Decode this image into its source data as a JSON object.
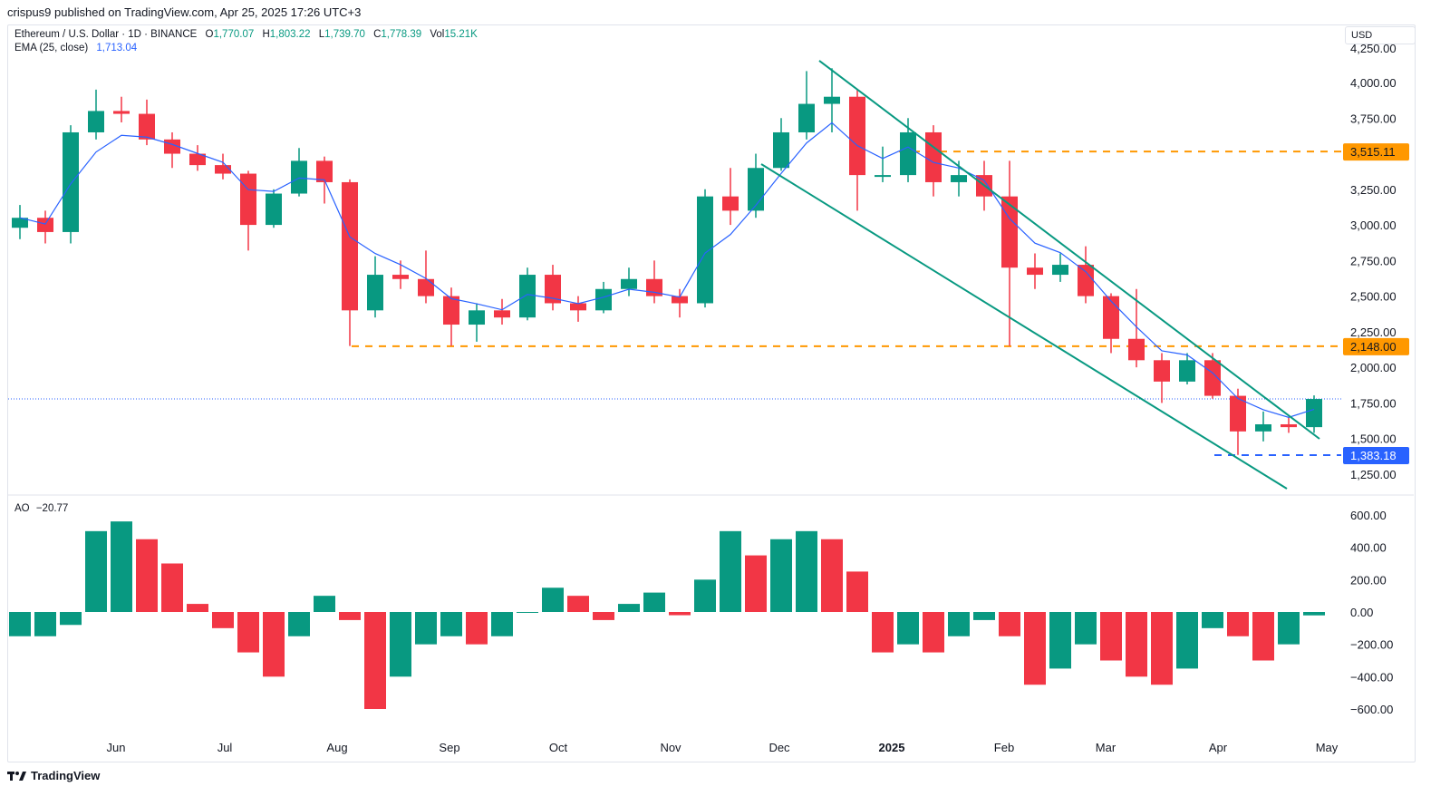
{
  "header": {
    "published": "crispus9 published on TradingView.com, Apr 25, 2025 17:26 UTC+3",
    "symbol": "Ethereum / U.S. Dollar · 1D · BINANCE",
    "o_label": "O",
    "o": "1,770.07",
    "h_label": "H",
    "h": "1,803.22",
    "l_label": "L",
    "l": "1,739.70",
    "c_label": "C",
    "c": "1,778.39",
    "vol_label": "Vol",
    "vol": "15.21K",
    "ema_label": "EMA (25, close)",
    "ema": "1,713.04",
    "currency": "USD"
  },
  "ao_panel": {
    "label": "AO",
    "value": "−20.77"
  },
  "footer": {
    "logo_text": "TradingView"
  },
  "colors": {
    "up": "#089981",
    "down": "#f23645",
    "ema": "#2962ff",
    "channel": "#089981",
    "level": "#ff9800",
    "support": "#2962ff"
  },
  "chart_data": [
    {
      "type": "candlestick",
      "title": "Ethereum / U.S. Dollar · 1D · BINANCE",
      "note": "values approximated from the chart, aggregated weekly",
      "yscale": "linear",
      "ylim": [
        1100,
        4300
      ],
      "yticks": [
        "1,250.00",
        "1,500.00",
        "1,750.00",
        "2,000.00",
        "2,250.00",
        "2,500.00",
        "2,750.00",
        "3,000.00",
        "3,250.00",
        "3,750.00",
        "4,000.00"
      ],
      "ytick_values": [
        1250,
        1500,
        1750,
        2000,
        2250,
        2500,
        2750,
        3000,
        3250,
        3750,
        4000
      ],
      "xticks": [
        {
          "label": "Jun",
          "date": "2024-06-01"
        },
        {
          "label": "Jul",
          "date": "2024-07-01"
        },
        {
          "label": "Aug",
          "date": "2024-08-01"
        },
        {
          "label": "Sep",
          "date": "2024-09-01"
        },
        {
          "label": "Oct",
          "date": "2024-10-01"
        },
        {
          "label": "Nov",
          "date": "2024-11-01"
        },
        {
          "label": "Dec",
          "date": "2024-12-01"
        },
        {
          "label": "2025",
          "date": "2025-01-01"
        },
        {
          "label": "Feb",
          "date": "2025-02-01"
        },
        {
          "label": "Mar",
          "date": "2025-03-01"
        },
        {
          "label": "Apr",
          "date": "2025-04-01"
        },
        {
          "label": "May",
          "date": "2025-05-01"
        }
      ],
      "start_date": "2024-05-02",
      "ohlc": [
        [
          2980,
          3140,
          2900,
          3050
        ],
        [
          3050,
          3100,
          2870,
          2950
        ],
        [
          2950,
          3700,
          2870,
          3650
        ],
        [
          3650,
          3950,
          3600,
          3800
        ],
        [
          3800,
          3900,
          3720,
          3780
        ],
        [
          3780,
          3880,
          3560,
          3600
        ],
        [
          3600,
          3650,
          3400,
          3500
        ],
        [
          3500,
          3560,
          3380,
          3420
        ],
        [
          3420,
          3500,
          3320,
          3360
        ],
        [
          3360,
          3380,
          2820,
          3000
        ],
        [
          3000,
          3250,
          2980,
          3220
        ],
        [
          3220,
          3540,
          3200,
          3450
        ],
        [
          3450,
          3480,
          3150,
          3300
        ],
        [
          3300,
          3320,
          2150,
          2400
        ],
        [
          2400,
          2780,
          2350,
          2650
        ],
        [
          2650,
          2750,
          2550,
          2620
        ],
        [
          2620,
          2820,
          2450,
          2500
        ],
        [
          2500,
          2560,
          2150,
          2300
        ],
        [
          2300,
          2450,
          2180,
          2400
        ],
        [
          2400,
          2480,
          2300,
          2350
        ],
        [
          2350,
          2700,
          2330,
          2650
        ],
        [
          2650,
          2720,
          2400,
          2450
        ],
        [
          2450,
          2500,
          2320,
          2400
        ],
        [
          2400,
          2600,
          2380,
          2550
        ],
        [
          2550,
          2700,
          2500,
          2620
        ],
        [
          2620,
          2750,
          2450,
          2500
        ],
        [
          2500,
          2550,
          2350,
          2450
        ],
        [
          2450,
          3250,
          2420,
          3200
        ],
        [
          3200,
          3400,
          3000,
          3100
        ],
        [
          3100,
          3500,
          3050,
          3400
        ],
        [
          3400,
          3750,
          3380,
          3650
        ],
        [
          3650,
          4080,
          3600,
          3850
        ],
        [
          3850,
          4100,
          3650,
          3900
        ],
        [
          3900,
          3950,
          3100,
          3350
        ],
        [
          3350,
          3550,
          3300,
          3350
        ],
        [
          3350,
          3750,
          3300,
          3650
        ],
        [
          3650,
          3700,
          3200,
          3300
        ],
        [
          3300,
          3450,
          3200,
          3350
        ],
        [
          3350,
          3450,
          3100,
          3200
        ],
        [
          3200,
          3450,
          2150,
          2700
        ],
        [
          2700,
          2800,
          2550,
          2650
        ],
        [
          2650,
          2800,
          2600,
          2720
        ],
        [
          2720,
          2850,
          2450,
          2500
        ],
        [
          2500,
          2520,
          2100,
          2200
        ],
        [
          2200,
          2550,
          2000,
          2050
        ],
        [
          2050,
          2100,
          1750,
          1900
        ],
        [
          1900,
          2100,
          1880,
          2050
        ],
        [
          2050,
          2100,
          1780,
          1800
        ],
        [
          1800,
          1850,
          1385,
          1550
        ],
        [
          1550,
          1690,
          1480,
          1600
        ],
        [
          1600,
          1650,
          1540,
          1580
        ],
        [
          1580,
          1803,
          1540,
          1778
        ]
      ],
      "ema_period": 25,
      "price_levels": [
        {
          "label": "3,515.11",
          "value": 3515.11,
          "from": "2025-01-03",
          "color": "#ff9800"
        },
        {
          "label": "2,148.00",
          "value": 2148.0,
          "from": "2024-08-05",
          "color": "#ff9800"
        },
        {
          "label": "1,383.18",
          "value": 1383.18,
          "from": "2025-03-31",
          "color": "#2962ff"
        }
      ],
      "last_price": 1778.39,
      "trendlines": [
        {
          "name": "channel-upper",
          "points": [
            [
              "2024-12-12",
              4153
            ],
            [
              "2025-04-29",
              1498
            ]
          ]
        },
        {
          "name": "channel-lower",
          "points": [
            [
              "2024-11-26",
              3427
            ],
            [
              "2025-04-20",
              1148
            ]
          ]
        }
      ]
    },
    {
      "type": "bar",
      "title": "AO",
      "ylim": [
        -650,
        650
      ],
      "yticks": [
        "600.00",
        "400.00",
        "200.00",
        "0.00",
        "−200.00",
        "−400.00",
        "−600.00"
      ],
      "ytick_values": [
        600,
        400,
        200,
        0,
        -200,
        -400,
        -600
      ],
      "values": [
        -150,
        -150,
        -80,
        500,
        560,
        450,
        300,
        50,
        -100,
        -250,
        -400,
        -150,
        100,
        -50,
        -600,
        -400,
        -200,
        -150,
        -200,
        -150,
        0,
        150,
        100,
        -50,
        50,
        120,
        -20,
        200,
        500,
        350,
        450,
        500,
        450,
        250,
        -250,
        -200,
        -250,
        -150,
        -50,
        -150,
        -450,
        -350,
        -200,
        -300,
        -400,
        -450,
        -350,
        -100,
        -150,
        -300,
        -200,
        -21
      ]
    }
  ]
}
